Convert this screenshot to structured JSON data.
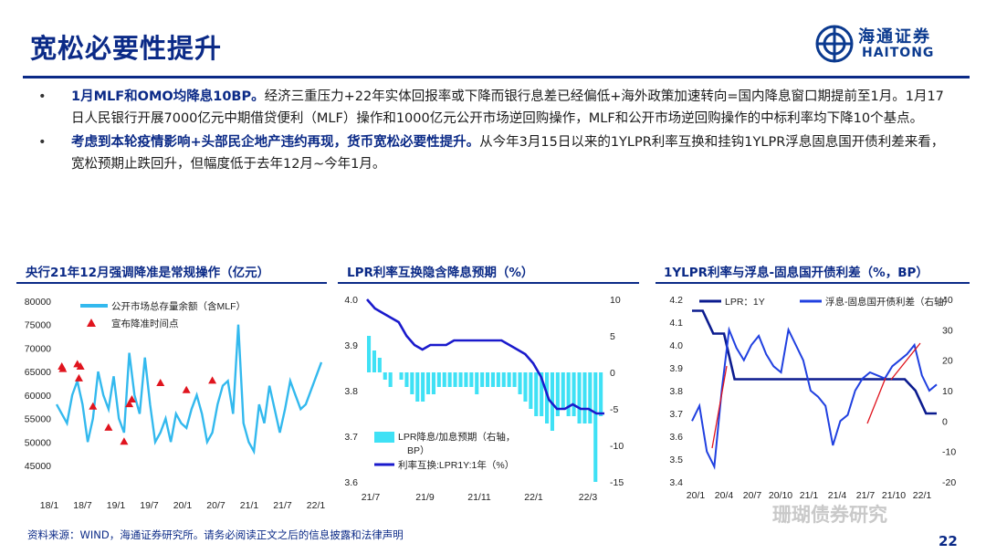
{
  "title": "宽松必要性提升",
  "logo": {
    "cn": "海通证券",
    "en": "HAITONG"
  },
  "bullets": [
    {
      "bold": "1月MLF和OMO均降息10BP。",
      "text": "经济三重压力+22年实体回报率或下降而银行息差已经偏低+海外政策加速转向=国内降息窗口期提前至1月。1月17日人民银行开展7000亿元中期借贷便利（MLF）操作和1000亿元公开市场逆回购操作，MLF和公开市场逆回购操作的中标利率均下降10个基点。"
    },
    {
      "bold": "考虑到本轮疫情影响+头部民企地产违约再现，货币宽松必要性提升。",
      "text": "从今年3月15日以来的1YLPR利率互换和挂钩1YLPR浮息固息国开债利差来看，宽松预期止跌回升，但幅度低于去年12月~今年1月。"
    }
  ],
  "colors": {
    "navy": "#0b2a87",
    "cyan": "#33b9ee",
    "red": "#e0141e",
    "blue": "#1a1acc",
    "blue2": "#2040e0",
    "lightcyan": "#3fe1f5"
  },
  "chart_data": [
    {
      "type": "line",
      "title": "央行21年12月强调降准是常规操作（亿元）",
      "ylim": [
        45000,
        80000
      ],
      "yticks": [
        "45000",
        "50000",
        "55000",
        "60000",
        "65000",
        "70000",
        "75000",
        "80000"
      ],
      "xticks": [
        "18/1",
        "18/7",
        "19/1",
        "19/7",
        "20/1",
        "20/7",
        "21/1",
        "21/7",
        "22/1"
      ],
      "series": [
        {
          "name": "公开市场总存量余额（含MLF）",
          "x": [
            0,
            1,
            2,
            3,
            4,
            5,
            6,
            7,
            8,
            9,
            10,
            11,
            12,
            13,
            14,
            15,
            16,
            17,
            18,
            19,
            20,
            21,
            22,
            23,
            24,
            25,
            26,
            27,
            28,
            29,
            30,
            31,
            32,
            33,
            34,
            35,
            36,
            37,
            38,
            39,
            40,
            41,
            42,
            43,
            44,
            45,
            46,
            47,
            48,
            49,
            50,
            51
          ],
          "values": [
            58000,
            56000,
            54000,
            60000,
            63000,
            58000,
            50000,
            55000,
            65000,
            60000,
            57000,
            64000,
            55000,
            52000,
            69000,
            60000,
            56000,
            68000,
            58000,
            50000,
            52000,
            55000,
            50000,
            56000,
            54000,
            53000,
            57000,
            60000,
            56000,
            50000,
            52000,
            58000,
            62000,
            63000,
            56000,
            75000,
            54000,
            50000,
            48000,
            58000,
            54000,
            62000,
            57000,
            52000,
            57000,
            63000,
            60000,
            57000,
            58000,
            61000,
            64000,
            67000
          ]
        },
        {
          "name": "宣布降准时间点",
          "x": [
            1,
            1.2,
            4,
            4.3,
            4.6,
            7,
            10,
            13,
            14,
            14.5,
            20,
            25,
            30
          ],
          "values": [
            66000,
            65500,
            66500,
            63500,
            66000,
            57500,
            53000,
            50000,
            58000,
            59000,
            62500,
            61000,
            63000
          ]
        }
      ],
      "scatter_legend": "宣布降准时间点"
    },
    {
      "type": "bar+line",
      "title": "LPR利率互换隐含降息预期（%）",
      "ylim": [
        3.6,
        4.0
      ],
      "y2lim": [
        -15,
        10
      ],
      "yticks": [
        "3.6",
        "3.7",
        "3.8",
        "3.9",
        "4.0"
      ],
      "y2ticks": [
        "-15",
        "-10",
        "-5",
        "0",
        "5",
        "10"
      ],
      "xticks": [
        "21/7",
        "21/9",
        "21/11",
        "22/1",
        "22/3"
      ],
      "series": [
        {
          "name": "LPR降息/加息预期（右轴，BP）",
          "type": "bar",
          "values": [
            5,
            3,
            2,
            -1,
            -2,
            0,
            -1,
            -2,
            -3,
            -4,
            -4,
            -3,
            -3,
            -2,
            -2,
            -2,
            -2,
            -2,
            -2,
            -2,
            -3,
            -2,
            -2,
            -2,
            -2,
            -2,
            -2,
            -2,
            -3,
            -4,
            -5,
            -6,
            -6,
            -7,
            -8,
            -6,
            -5,
            -6,
            -6,
            -7,
            -7,
            -7,
            -15,
            -6
          ]
        },
        {
          "name": "利率互换:LPR1Y:1年（%）",
          "type": "line",
          "values": [
            4.0,
            3.98,
            3.97,
            3.96,
            3.95,
            3.92,
            3.9,
            3.89,
            3.9,
            3.9,
            3.9,
            3.91,
            3.91,
            3.91,
            3.91,
            3.91,
            3.91,
            3.91,
            3.9,
            3.89,
            3.88,
            3.86,
            3.83,
            3.78,
            3.76,
            3.76,
            3.77,
            3.76,
            3.76,
            3.75,
            3.75
          ]
        }
      ],
      "legend": [
        "LPR降息/加息预期（右轴，",
        "BP）",
        "利率互换:LPR1Y:1年（%）"
      ]
    },
    {
      "type": "line",
      "title": "1YLPR利率与浮息-固息国开债利差（%，BP）",
      "ylim": [
        3.4,
        4.2
      ],
      "y2lim": [
        -20,
        40
      ],
      "yticks": [
        "3.4",
        "3.5",
        "3.6",
        "3.7",
        "3.8",
        "3.9",
        "4.0",
        "4.1",
        "4.2"
      ],
      "y2ticks": [
        "-20",
        "-10",
        "0",
        "10",
        "20",
        "30",
        "40"
      ],
      "xticks": [
        "20/1",
        "20/4",
        "20/7",
        "20/10",
        "21/1",
        "21/4",
        "21/7",
        "21/10",
        "22/1"
      ],
      "series": [
        {
          "name": "LPR：1Y",
          "values": [
            4.15,
            4.15,
            4.05,
            4.05,
            3.85,
            3.85,
            3.85,
            3.85,
            3.85,
            3.85,
            3.85,
            3.85,
            3.85,
            3.85,
            3.85,
            3.85,
            3.85,
            3.85,
            3.85,
            3.85,
            3.85,
            3.8,
            3.7,
            3.7
          ]
        },
        {
          "name": "浮息-固息国开债利差（右轴）",
          "values": [
            0,
            5,
            -10,
            -15,
            10,
            30,
            24,
            20,
            25,
            28,
            22,
            18,
            16,
            30,
            25,
            20,
            10,
            8,
            5,
            -8,
            0,
            2,
            10,
            14,
            16,
            15,
            14,
            18,
            20,
            22,
            25,
            15,
            10,
            12
          ]
        }
      ],
      "legend": [
        "LPR：1Y",
        "浮息-固息国开债利差（右轴）"
      ]
    }
  ],
  "footer": "资料来源：WIND，海通证券研究所。请务必阅读正文之后的信息披露和法律声明",
  "watermark": "珊瑚债券研究",
  "page_number": "22"
}
